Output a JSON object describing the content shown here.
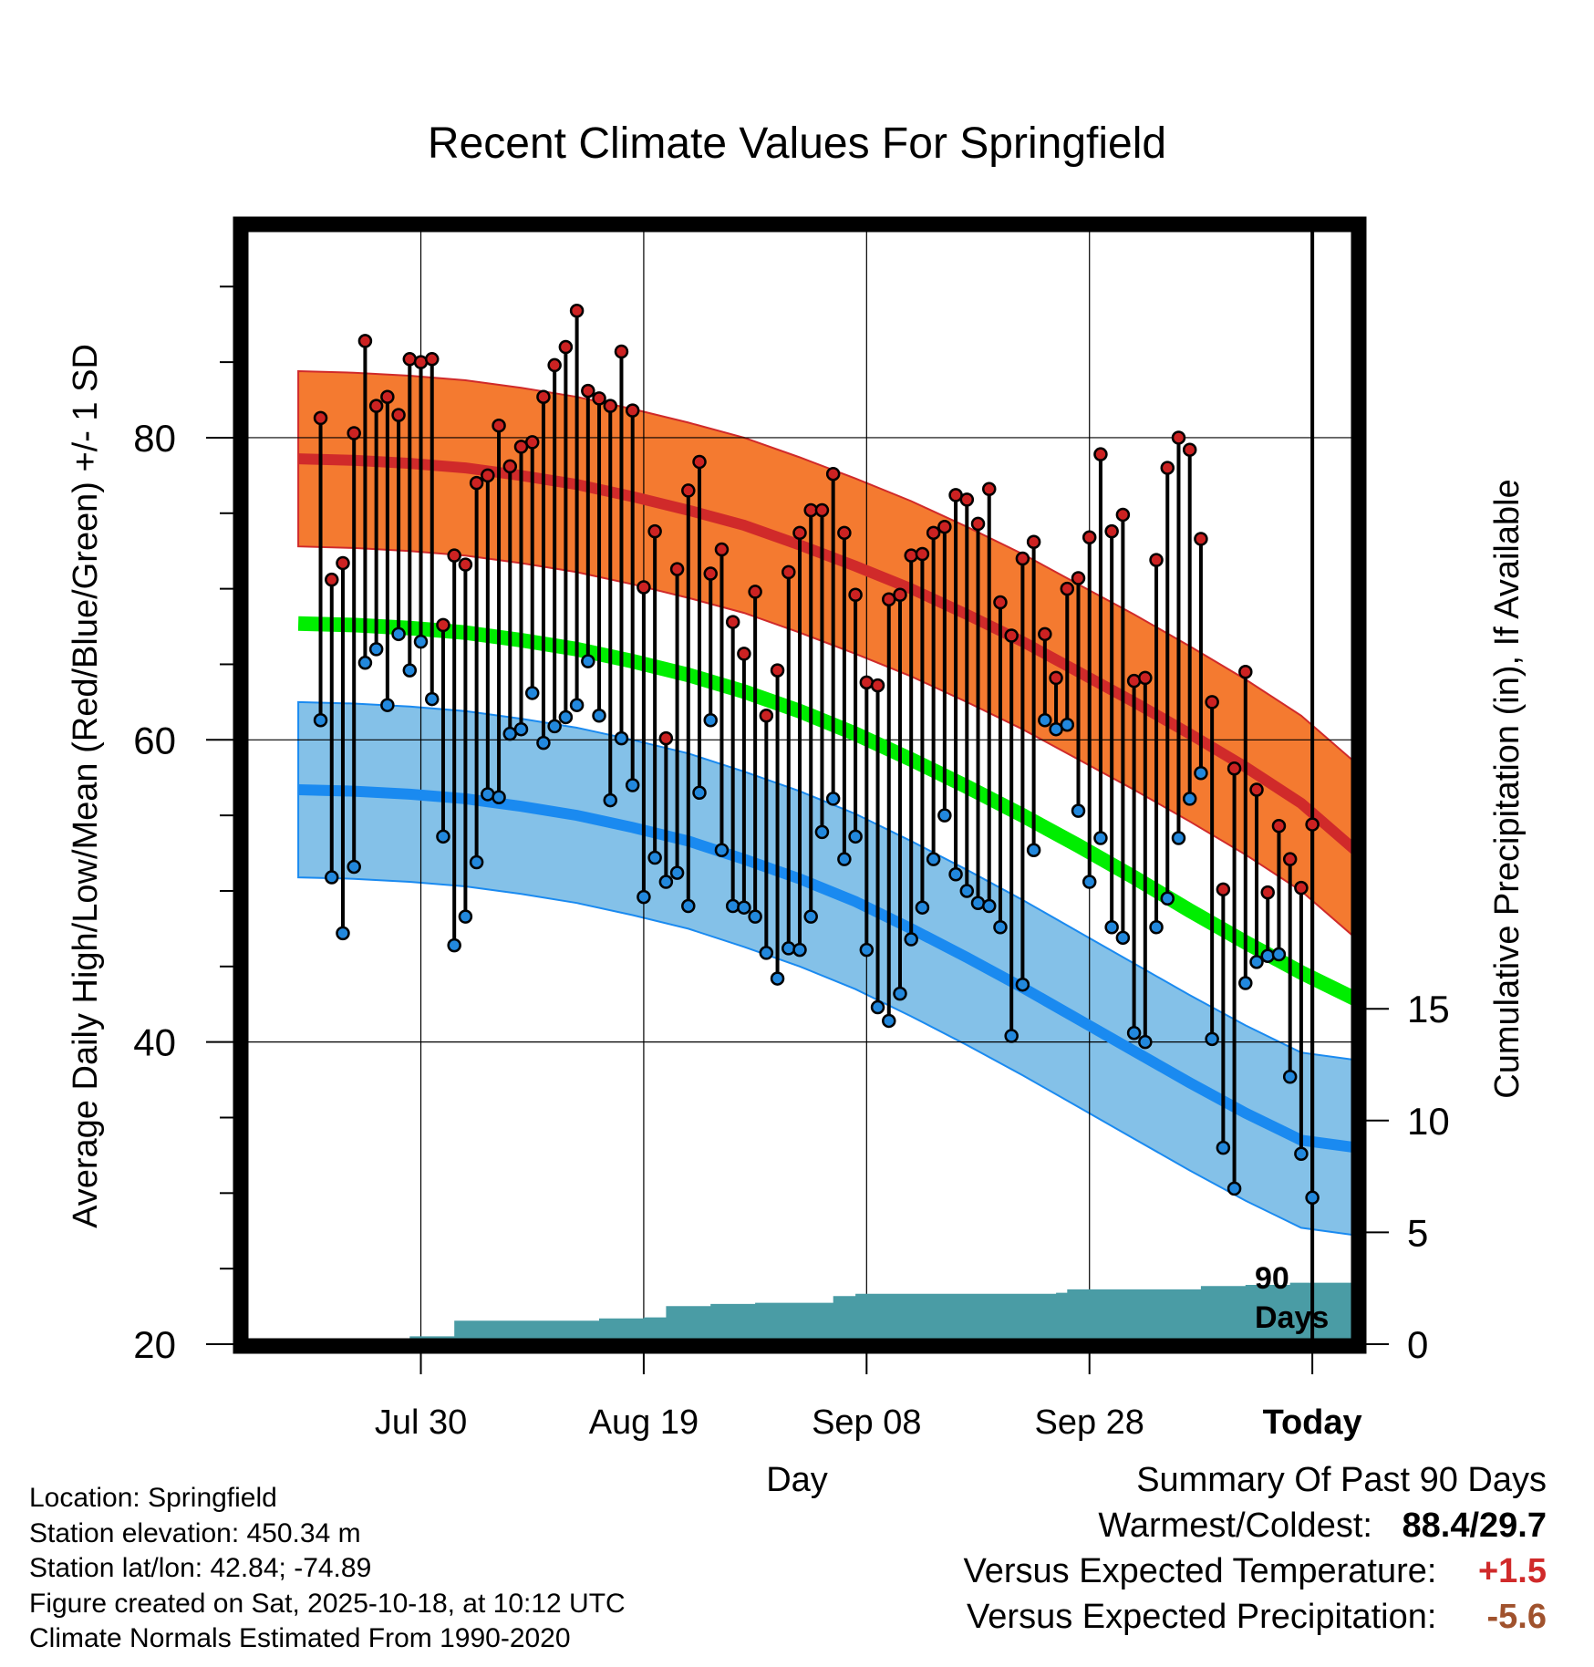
{
  "chart_data": {
    "type": "line",
    "title": "Recent Climate Values For Springfield",
    "xlabel": "Day",
    "ylabel": "Average Daily High/Low/Mean (Red/Blue/Green) +/- 1 SD",
    "y2label": "Cumulative Precipitation (in), If Available",
    "ylim": [
      20,
      94
    ],
    "y2lim": [
      0,
      50
    ],
    "y_ticks": [
      "20",
      "40",
      "60",
      "80"
    ],
    "y2_ticks": [
      "0",
      "5",
      "10",
      "15"
    ],
    "x_range": [
      -107,
      -7
    ],
    "x_ticks": [
      {
        "day": -91,
        "label": "Jul 30"
      },
      {
        "day": -71,
        "label": "Aug 19"
      },
      {
        "day": -51,
        "label": "Sep 08"
      },
      {
        "day": -31,
        "label": "Sep 28"
      },
      {
        "day": -11,
        "label": "Today"
      }
    ],
    "period_label": "90",
    "period_unit": "Days",
    "grid": true,
    "normals": {
      "day": [
        -102,
        -97,
        -92,
        -87,
        -82,
        -77,
        -72,
        -67,
        -62,
        -57,
        -52,
        -47,
        -42,
        -37,
        -32,
        -27,
        -22,
        -17,
        -12,
        -7
      ],
      "high": [
        78.6,
        78.5,
        78.3,
        78.0,
        77.5,
        76.9,
        76.1,
        75.2,
        74.2,
        72.9,
        71.5,
        70.0,
        68.3,
        66.5,
        64.5,
        62.5,
        60.4,
        58.2,
        55.8,
        52.6
      ],
      "high_sd": 5.8,
      "mean": [
        67.7,
        67.6,
        67.4,
        67.1,
        66.6,
        66.0,
        65.2,
        64.3,
        63.2,
        61.9,
        60.4,
        58.7,
        56.9,
        55.0,
        53.0,
        50.9,
        48.7,
        46.6,
        44.6,
        42.8
      ],
      "low": [
        56.7,
        56.6,
        56.4,
        56.1,
        55.6,
        55.0,
        54.2,
        53.3,
        52.1,
        50.8,
        49.3,
        47.5,
        45.6,
        43.6,
        41.5,
        39.4,
        37.3,
        35.3,
        33.5,
        33.0
      ],
      "low_sd": 5.8
    },
    "series": [
      {
        "name": "High",
        "values": [
          81.3,
          70.6,
          71.7,
          80.3,
          86.4,
          82.1,
          82.7,
          81.5,
          85.2,
          85.0,
          85.2,
          67.6,
          72.2,
          71.6,
          77.0,
          77.5,
          80.8,
          78.1,
          79.4,
          79.7,
          82.7,
          84.8,
          86.0,
          88.4,
          83.1,
          82.6,
          82.1,
          85.7,
          81.8,
          70.1,
          73.8,
          60.1,
          71.3,
          76.5,
          78.4,
          71.0,
          72.6,
          67.8,
          65.7,
          69.8,
          61.6,
          64.6,
          71.1,
          73.7,
          75.2,
          75.2,
          77.6,
          73.7,
          69.6,
          63.8,
          63.6,
          69.3,
          69.6,
          72.2,
          72.3,
          73.7,
          74.1,
          76.2,
          75.9,
          74.3,
          76.6,
          69.1,
          66.9,
          72.0,
          73.1,
          67.0,
          64.1,
          70.0,
          70.7,
          73.4,
          78.9,
          73.8,
          74.9,
          63.9,
          64.1,
          71.9,
          78.0,
          80.0,
          79.2,
          73.3,
          62.5,
          50.1,
          58.1,
          64.5,
          56.7,
          49.9,
          54.3,
          52.1,
          50.2,
          54.4
        ]
      },
      {
        "name": "Low",
        "values": [
          61.3,
          50.9,
          47.2,
          51.6,
          65.1,
          66.0,
          62.3,
          67.0,
          64.6,
          66.5,
          62.7,
          53.6,
          46.4,
          48.3,
          51.9,
          56.4,
          56.2,
          60.4,
          60.7,
          63.1,
          59.8,
          60.9,
          61.5,
          62.3,
          65.2,
          61.6,
          56.0,
          60.1,
          57.0,
          49.6,
          52.2,
          50.6,
          51.2,
          49.0,
          56.5,
          61.3,
          52.7,
          49.0,
          48.9,
          48.3,
          45.9,
          44.2,
          46.2,
          46.1,
          48.3,
          53.9,
          56.1,
          52.1,
          53.6,
          46.1,
          42.3,
          41.4,
          43.2,
          46.8,
          48.9,
          52.1,
          55.0,
          51.1,
          50.0,
          49.2,
          49.0,
          47.6,
          40.4,
          43.8,
          52.7,
          61.3,
          60.7,
          61.0,
          55.3,
          50.6,
          53.5,
          47.6,
          46.9,
          40.6,
          40.0,
          47.6,
          49.5,
          53.5,
          56.1,
          57.8,
          40.2,
          33.0,
          30.3,
          43.9,
          45.3,
          45.7,
          45.8,
          37.7,
          32.6,
          29.7
        ]
      },
      {
        "name": "Precipitation",
        "values": [
          0,
          0,
          0,
          0,
          0,
          0,
          0,
          0,
          0.35,
          0.35,
          0.35,
          0.35,
          1.05,
          1.05,
          1.05,
          1.05,
          1.05,
          1.05,
          1.05,
          1.05,
          1.05,
          1.05,
          1.05,
          1.05,
          1.05,
          1.15,
          1.15,
          1.15,
          1.15,
          1.2,
          1.2,
          1.7,
          1.7,
          1.7,
          1.7,
          1.8,
          1.8,
          1.8,
          1.8,
          1.85,
          1.85,
          1.85,
          1.85,
          1.85,
          1.85,
          1.85,
          2.15,
          2.15,
          2.25,
          2.25,
          2.25,
          2.25,
          2.25,
          2.25,
          2.25,
          2.25,
          2.25,
          2.25,
          2.25,
          2.25,
          2.25,
          2.25,
          2.25,
          2.25,
          2.25,
          2.25,
          2.3,
          2.45,
          2.45,
          2.45,
          2.45,
          2.45,
          2.45,
          2.45,
          2.45,
          2.45,
          2.45,
          2.45,
          2.45,
          2.6,
          2.6,
          2.6,
          2.6,
          2.65,
          2.65,
          2.65,
          2.65,
          2.75,
          2.75,
          2.75
        ]
      }
    ]
  },
  "info": {
    "location": "Location: Springfield",
    "elevation": "Station elevation: 450.34 m",
    "latlon": "Station lat/lon: 42.84; -74.89",
    "created": "Figure created on Sat, 2025-10-18, at 10:12 UTC",
    "normals": "Climate Normals Estimated From 1990-2020"
  },
  "summary": {
    "title": "Summary Of Past 90 Days",
    "warm_cold_label": "Warmest/Coldest:",
    "warm_cold_value": "88.4/29.7",
    "temp_label": "Versus Expected Temperature:",
    "temp_value": "+1.5",
    "precip_label": "Versus Expected Precipitation:",
    "precip_value": "-5.6"
  },
  "colors": {
    "high_band": "#f47a30",
    "high_line": "#d02a2a",
    "low_band": "#84c1e8",
    "low_line": "#1a8af0",
    "mean_line": "#00ee00",
    "precip_fill": "#4a9ca5",
    "high_dot": "#cc2222",
    "low_dot": "#2288dd",
    "temp_value": "#d02a2a",
    "precip_value": "#a0522d"
  }
}
